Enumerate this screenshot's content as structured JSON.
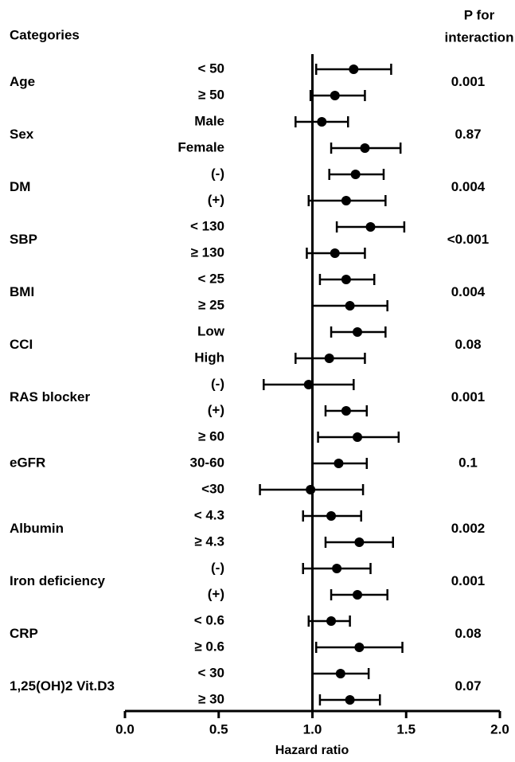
{
  "chart_data": {
    "type": "forest",
    "categories_header": "Categories",
    "p_header": [
      "P for",
      "interaction"
    ],
    "x_label": "Hazard ratio",
    "xlim": [
      0,
      2
    ],
    "xticks": [
      {
        "value": 0,
        "label": "0.0"
      },
      {
        "value": 0.5,
        "label": "0.5"
      },
      {
        "value": 1,
        "label": "1.0"
      },
      {
        "value": 1.5,
        "label": "1.5"
      },
      {
        "value": 2,
        "label": "2.0"
      }
    ],
    "reference": 1,
    "color": "#000000",
    "groups": [
      {
        "name": "Age",
        "p": "0.001",
        "subgroups": [
          {
            "label": "< 50",
            "value": 1.22,
            "ci": [
              1.02,
              1.42
            ]
          },
          {
            "label": "≥ 50",
            "value": 1.12,
            "ci": [
              0.99,
              1.28
            ]
          }
        ]
      },
      {
        "name": "Sex",
        "p": "0.87",
        "subgroups": [
          {
            "label": "Male",
            "value": 1.05,
            "ci": [
              0.91,
              1.19
            ]
          },
          {
            "label": "Female",
            "value": 1.28,
            "ci": [
              1.1,
              1.47
            ]
          }
        ]
      },
      {
        "name": "DM",
        "p": "0.004",
        "subgroups": [
          {
            "label": "(-)",
            "value": 1.23,
            "ci": [
              1.09,
              1.38
            ]
          },
          {
            "label": "(+)",
            "value": 1.18,
            "ci": [
              0.98,
              1.39
            ]
          }
        ]
      },
      {
        "name": "SBP",
        "p": "<0.001",
        "subgroups": [
          {
            "label": "< 130",
            "value": 1.31,
            "ci": [
              1.13,
              1.49
            ]
          },
          {
            "label": "≥ 130",
            "value": 1.12,
            "ci": [
              0.97,
              1.28
            ]
          }
        ]
      },
      {
        "name": "BMI",
        "p": "0.004",
        "subgroups": [
          {
            "label": "< 25",
            "value": 1.18,
            "ci": [
              1.04,
              1.33
            ]
          },
          {
            "label": "≥ 25",
            "value": 1.2,
            "ci": [
              1.0,
              1.4
            ]
          }
        ]
      },
      {
        "name": "CCI",
        "p": "0.08",
        "subgroups": [
          {
            "label": "Low",
            "value": 1.24,
            "ci": [
              1.1,
              1.39
            ]
          },
          {
            "label": "High",
            "value": 1.09,
            "ci": [
              0.91,
              1.28
            ]
          }
        ]
      },
      {
        "name": "RAS blocker",
        "p": "0.001",
        "subgroups": [
          {
            "label": "(-)",
            "value": 0.98,
            "ci": [
              0.74,
              1.22
            ]
          },
          {
            "label": "(+)",
            "value": 1.18,
            "ci": [
              1.07,
              1.29
            ]
          }
        ]
      },
      {
        "name": "eGFR",
        "p": "0.1",
        "subgroups": [
          {
            "label": "≥ 60",
            "value": 1.24,
            "ci": [
              1.03,
              1.46
            ]
          },
          {
            "label": "30-60",
            "value": 1.14,
            "ci": [
              1.0,
              1.29
            ]
          },
          {
            "label": "<30",
            "value": 0.99,
            "ci": [
              0.72,
              1.27
            ]
          }
        ]
      },
      {
        "name": "Albumin",
        "p": "0.002",
        "subgroups": [
          {
            "label": "< 4.3",
            "value": 1.1,
            "ci": [
              0.95,
              1.26
            ]
          },
          {
            "label": "≥ 4.3",
            "value": 1.25,
            "ci": [
              1.07,
              1.43
            ]
          }
        ]
      },
      {
        "name": "Iron deficiency",
        "p": "0.001",
        "subgroups": [
          {
            "label": "(-)",
            "value": 1.13,
            "ci": [
              0.95,
              1.31
            ]
          },
          {
            "label": "(+)",
            "value": 1.24,
            "ci": [
              1.1,
              1.4
            ]
          }
        ]
      },
      {
        "name": "CRP",
        "p": "0.08",
        "subgroups": [
          {
            "label": "< 0.6",
            "value": 1.1,
            "ci": [
              0.98,
              1.2
            ]
          },
          {
            "label": "≥ 0.6",
            "value": 1.25,
            "ci": [
              1.02,
              1.48
            ]
          }
        ]
      },
      {
        "name": "1,25(OH)2 Vit.D3",
        "p": "0.07",
        "subgroups": [
          {
            "label": "< 30",
            "value": 1.15,
            "ci": [
              1.0,
              1.3
            ]
          },
          {
            "label": "≥ 30",
            "value": 1.2,
            "ci": [
              1.04,
              1.36
            ]
          }
        ]
      }
    ]
  }
}
